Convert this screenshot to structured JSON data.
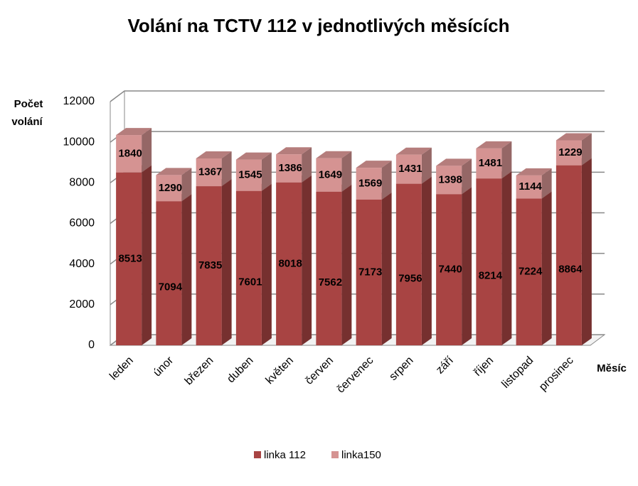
{
  "chart_data": {
    "type": "bar3d_stacked",
    "title": "Volání na TCTV 112 v jednotlivých měsících",
    "y_label": [
      "Počet",
      "volání"
    ],
    "x_label": "Měsíc",
    "categories": [
      "leden",
      "únor",
      "březen",
      "duben",
      "květen",
      "červen",
      "červenec",
      "srpen",
      "září",
      "říjen",
      "listopad",
      "prosinec"
    ],
    "series": [
      {
        "name": "linka 112",
        "color": "#a84443",
        "values": [
          8513,
          7094,
          7835,
          7601,
          8018,
          7562,
          7173,
          7956,
          7440,
          8214,
          7224,
          8864
        ]
      },
      {
        "name": "linka150",
        "color": "#d59392",
        "values": [
          1840,
          1290,
          1367,
          1545,
          1386,
          1649,
          1569,
          1431,
          1398,
          1481,
          1144,
          1229
        ]
      }
    ],
    "ylim": [
      0,
      12000
    ],
    "yticks": [
      0,
      2000,
      4000,
      6000,
      8000,
      10000,
      12000
    ],
    "grid": true,
    "legend": "bottom"
  }
}
